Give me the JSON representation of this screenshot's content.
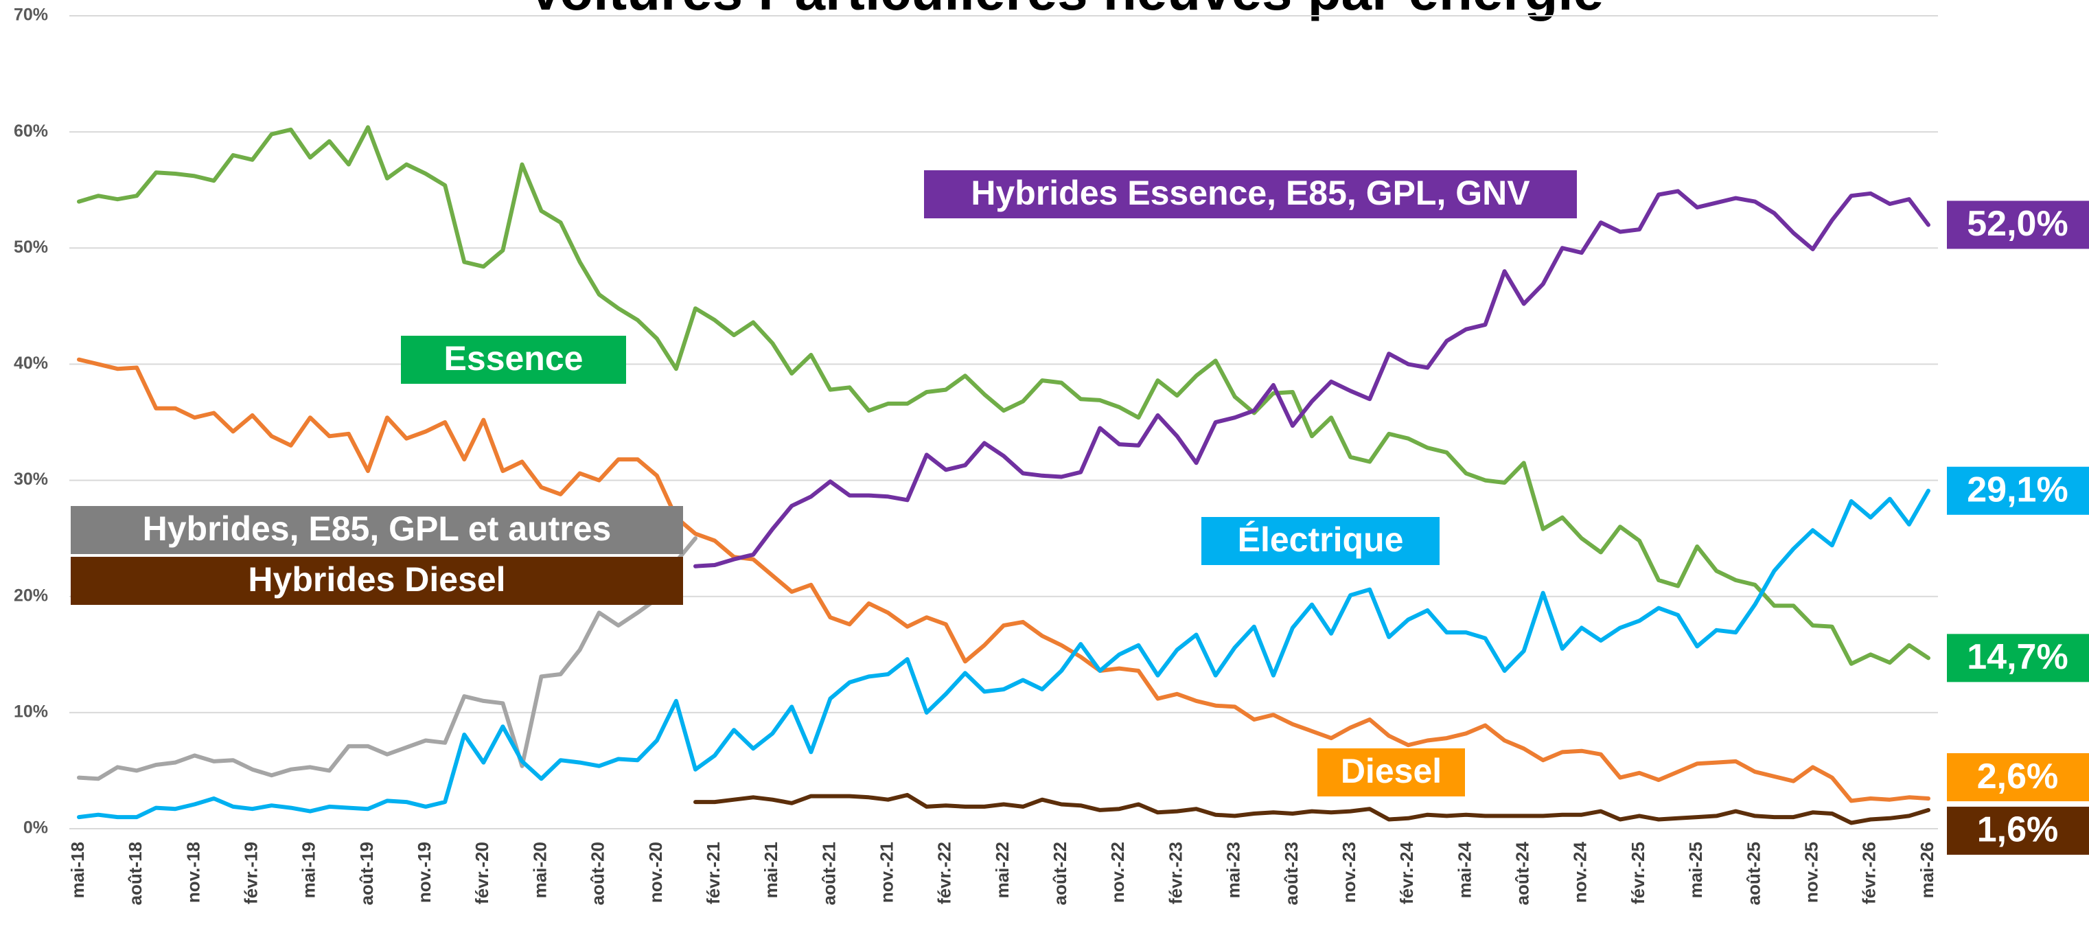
{
  "chart_data": {
    "type": "line",
    "title": "Voitures Particulières neuves par énergie",
    "categories": [
      "mai-18",
      null,
      null,
      "août-18",
      null,
      null,
      "nov.-18",
      null,
      null,
      "févr.-19",
      null,
      null,
      "mai-19",
      null,
      null,
      "août-19",
      null,
      null,
      "nov.-19",
      null,
      null,
      "févr.-20",
      null,
      null,
      "mai-20",
      null,
      null,
      "août-20",
      null,
      null,
      "nov.-20",
      null,
      null,
      "févr.-21",
      null,
      null,
      "mai-21",
      null,
      null,
      "août-21",
      null,
      null,
      "nov.-21",
      null,
      null,
      "févr.-22",
      null,
      null,
      "mai-22",
      null,
      null,
      "août-22",
      null,
      null,
      "nov.-22",
      null,
      null,
      "févr.-23",
      null,
      null,
      "mai-23",
      null,
      null,
      "août-23",
      null,
      null,
      "nov.-23",
      null,
      null,
      "févr.-24",
      null,
      null,
      "mai-24",
      null,
      null,
      "août-24",
      null,
      null,
      "nov.-24",
      null,
      null,
      "févr.-25",
      null,
      null,
      "mai-25",
      null,
      null,
      "août-25",
      null,
      null,
      "nov.-25",
      null,
      null,
      "févr.-26",
      null,
      null,
      "mai-26"
    ],
    "ylim": [
      0,
      70
    ],
    "yticks": [
      {
        "value": 0,
        "label": "0%"
      },
      {
        "value": 10,
        "label": "10%"
      },
      {
        "value": 20,
        "label": "20%"
      },
      {
        "value": 30,
        "label": "30%"
      },
      {
        "value": 40,
        "label": "40%"
      },
      {
        "value": 50,
        "label": "50%"
      },
      {
        "value": 60,
        "label": "60%"
      },
      {
        "value": 70,
        "label": "70%"
      }
    ],
    "grid": true,
    "series": [
      {
        "name": "Hybrides Essence, E85, GPL, GNV",
        "color": "#7030a0",
        "label_color": "#7030a0",
        "values": [
          null,
          null,
          null,
          null,
          null,
          null,
          null,
          null,
          null,
          null,
          null,
          null,
          null,
          null,
          null,
          null,
          null,
          null,
          null,
          null,
          null,
          null,
          null,
          null,
          null,
          null,
          null,
          null,
          null,
          null,
          null,
          null,
          22.6,
          22.7,
          23.2,
          23.6,
          25.8,
          27.8,
          28.6,
          29.9,
          28.7,
          28.7,
          28.6,
          28.3,
          32.2,
          30.9,
          31.3,
          33.2,
          32.1,
          30.6,
          30.4,
          30.3,
          30.7,
          34.5,
          33.1,
          33,
          35.6,
          33.8,
          31.5,
          35,
          35.4,
          36,
          38.2,
          34.7,
          36.8,
          38.5,
          37.7,
          37,
          40.9,
          40,
          39.7,
          42,
          43,
          43.4,
          48,
          45.2,
          46.9,
          50,
          49.6,
          52.2,
          51.4,
          51.6,
          54.6,
          54.9,
          53.5,
          53.9,
          54.3,
          54,
          53,
          51.3,
          49.9,
          52.4,
          54.5,
          54.7,
          53.8,
          54.2,
          52
        ],
        "value_labels": [
          null,
          null,
          null,
          null,
          null,
          null,
          null,
          null,
          null,
          null,
          null,
          null,
          null,
          null,
          null,
          null,
          null,
          null,
          null,
          null,
          null,
          null,
          null,
          null,
          null,
          null,
          null,
          null,
          null,
          null,
          null,
          null,
          null,
          null,
          null,
          null,
          null,
          null,
          null,
          null,
          null,
          null,
          null,
          null,
          null,
          null,
          null,
          null,
          null,
          null,
          null,
          null,
          null,
          null,
          null,
          null,
          null,
          null,
          null,
          null,
          null,
          null,
          null,
          null,
          null,
          null,
          null,
          null,
          null,
          null,
          null,
          null,
          null,
          null,
          null,
          null,
          null,
          null,
          null,
          null,
          null,
          null,
          null,
          null,
          null,
          null,
          null,
          null,
          null,
          null,
          null,
          null,
          null,
          null,
          null,
          null,
          "52,0%"
        ]
      },
      {
        "name": "Essence",
        "color": "#70ad47",
        "label_color": "#00b050",
        "values": [
          54,
          54.5,
          54.2,
          54.5,
          56.5,
          56.4,
          56.2,
          55.8,
          58,
          57.6,
          59.8,
          60.2,
          57.8,
          59.2,
          57.2,
          60.4,
          56,
          57.2,
          56.4,
          55.4,
          48.8,
          48.4,
          49.8,
          57.2,
          53.2,
          52.2,
          48.8,
          46,
          44.8,
          43.8,
          42.2,
          39.6,
          44.8,
          43.8,
          42.5,
          43.6,
          41.8,
          39.2,
          40.8,
          37.8,
          38,
          36,
          36.6,
          36.6,
          37.6,
          37.8,
          39,
          37.4,
          36,
          36.8,
          38.6,
          38.4,
          37,
          36.9,
          36.3,
          35.4,
          38.6,
          37.3,
          39,
          40.3,
          37.2,
          35.8,
          37.5,
          37.6,
          33.8,
          35.4,
          32,
          31.6,
          34,
          33.6,
          32.8,
          32.4,
          30.6,
          30,
          29.8,
          31.5,
          25.8,
          26.8,
          25,
          23.8,
          26,
          24.8,
          21.4,
          20.9,
          24.3,
          22.2,
          21.4,
          21,
          19.2,
          19.2,
          17.5,
          17.4,
          14.2,
          15,
          14.3,
          15.8,
          14.7
        ],
        "value_labels": [
          null,
          null,
          null,
          null,
          null,
          null,
          null,
          null,
          null,
          null,
          null,
          null,
          null,
          null,
          null,
          null,
          null,
          null,
          null,
          null,
          null,
          null,
          null,
          null,
          null,
          null,
          null,
          null,
          null,
          null,
          null,
          null,
          null,
          null,
          null,
          null,
          null,
          null,
          null,
          null,
          null,
          null,
          null,
          null,
          null,
          null,
          null,
          null,
          null,
          null,
          null,
          null,
          null,
          null,
          null,
          null,
          null,
          null,
          null,
          null,
          null,
          null,
          null,
          null,
          null,
          null,
          null,
          null,
          null,
          null,
          null,
          null,
          null,
          null,
          null,
          null,
          null,
          null,
          null,
          null,
          null,
          null,
          null,
          null,
          null,
          null,
          null,
          null,
          null,
          null,
          null,
          null,
          null,
          null,
          null,
          null,
          "14,7%"
        ]
      },
      {
        "name": "Hybrides, E85, GPL et autres",
        "color": "#a5a5a5",
        "label_color": "#808080",
        "values": [
          4.4,
          4.3,
          5.3,
          5,
          5.5,
          5.7,
          6.3,
          5.8,
          5.9,
          5.1,
          4.6,
          5.1,
          5.3,
          5,
          7.1,
          7.1,
          6.4,
          7,
          7.6,
          7.4,
          11.4,
          11,
          10.8,
          5.4,
          13.1,
          13.3,
          15.4,
          18.6,
          17.5,
          18.6,
          19.8,
          23,
          25,
          null,
          null,
          null,
          null,
          null,
          null,
          null,
          null,
          null,
          null,
          null,
          null,
          null,
          null,
          null,
          null,
          null,
          null,
          null,
          null,
          null,
          null,
          null,
          null,
          null,
          null,
          null,
          null,
          null,
          null,
          null,
          null,
          null,
          null,
          null,
          null,
          null,
          null,
          null,
          null,
          null,
          null,
          null,
          null,
          null,
          null,
          null,
          null,
          null,
          null,
          null,
          null,
          null,
          null,
          null,
          null,
          null,
          null,
          null,
          null,
          null,
          null,
          null,
          null
        ]
      },
      {
        "name": "Hybrides Diesel",
        "color": "#5c2e0a",
        "label_color": "#632b00",
        "values": [
          null,
          null,
          null,
          null,
          null,
          null,
          null,
          null,
          null,
          null,
          null,
          null,
          null,
          null,
          null,
          null,
          null,
          null,
          null,
          null,
          null,
          null,
          null,
          null,
          null,
          null,
          null,
          null,
          null,
          null,
          null,
          null,
          2.3,
          2.3,
          2.5,
          2.7,
          2.5,
          2.2,
          2.8,
          2.8,
          2.8,
          2.7,
          2.5,
          2.9,
          1.9,
          2,
          1.9,
          1.9,
          2.1,
          1.9,
          2.5,
          2.1,
          2,
          1.6,
          1.7,
          2.1,
          1.4,
          1.5,
          1.7,
          1.2,
          1.1,
          1.3,
          1.4,
          1.3,
          1.5,
          1.4,
          1.5,
          1.7,
          0.8,
          0.9,
          1.2,
          1.1,
          1.2,
          1.1,
          1.1,
          1.1,
          1.1,
          1.2,
          1.2,
          1.5,
          0.8,
          1.1,
          0.8,
          0.9,
          1,
          1.1,
          1.5,
          1.1,
          1,
          1,
          1.4,
          1.3,
          0.5,
          0.8,
          0.9,
          1.1,
          1.6
        ],
        "value_labels": [
          null,
          null,
          null,
          null,
          null,
          null,
          null,
          null,
          null,
          null,
          null,
          null,
          null,
          null,
          null,
          null,
          null,
          null,
          null,
          null,
          null,
          null,
          null,
          null,
          null,
          null,
          null,
          null,
          null,
          null,
          null,
          null,
          null,
          null,
          null,
          null,
          null,
          null,
          null,
          null,
          null,
          null,
          null,
          null,
          null,
          null,
          null,
          null,
          null,
          null,
          null,
          null,
          null,
          null,
          null,
          null,
          null,
          null,
          null,
          null,
          null,
          null,
          null,
          null,
          null,
          null,
          null,
          null,
          null,
          null,
          null,
          null,
          null,
          null,
          null,
          null,
          null,
          null,
          null,
          null,
          null,
          null,
          null,
          null,
          null,
          null,
          null,
          null,
          null,
          null,
          null,
          null,
          null,
          null,
          null,
          null,
          "1,6%"
        ]
      },
      {
        "name": "Électrique",
        "color": "#00b0f0",
        "label_color": "#00b0f0",
        "values": [
          1,
          1.2,
          1,
          1,
          1.8,
          1.7,
          2.1,
          2.6,
          1.9,
          1.7,
          2,
          1.8,
          1.5,
          1.9,
          1.8,
          1.7,
          2.4,
          2.3,
          1.9,
          2.3,
          8.1,
          5.7,
          8.8,
          5.8,
          4.3,
          5.9,
          5.7,
          5.4,
          6,
          5.9,
          7.6,
          11,
          5.1,
          6.3,
          8.5,
          6.9,
          8.2,
          10.5,
          6.6,
          11.2,
          12.6,
          13.1,
          13.3,
          14.6,
          10,
          11.6,
          13.4,
          11.8,
          12,
          12.8,
          12,
          13.6,
          15.9,
          13.6,
          15,
          15.8,
          13.2,
          15.4,
          16.7,
          13.2,
          15.6,
          17.4,
          13.2,
          17.3,
          19.3,
          16.8,
          20.1,
          20.6,
          16.5,
          18,
          18.8,
          16.9,
          16.9,
          16.4,
          13.6,
          15.3,
          20.3,
          15.5,
          17.3,
          16.2,
          17.3,
          17.9,
          19,
          18.4,
          15.7,
          17.1,
          16.9,
          19.3,
          22.2,
          24.1,
          25.7,
          24.4,
          28.2,
          26.8,
          28.4,
          26.2,
          29.1
        ],
        "value_labels": [
          null,
          null,
          null,
          null,
          null,
          null,
          null,
          null,
          null,
          null,
          null,
          null,
          null,
          null,
          null,
          null,
          null,
          null,
          null,
          null,
          null,
          null,
          null,
          null,
          null,
          null,
          null,
          null,
          null,
          null,
          null,
          null,
          null,
          null,
          null,
          null,
          null,
          null,
          null,
          null,
          null,
          null,
          null,
          null,
          null,
          null,
          null,
          null,
          null,
          null,
          null,
          null,
          null,
          null,
          null,
          null,
          null,
          null,
          null,
          null,
          null,
          null,
          null,
          null,
          null,
          null,
          null,
          null,
          null,
          null,
          null,
          null,
          null,
          null,
          null,
          null,
          null,
          null,
          null,
          null,
          null,
          null,
          null,
          null,
          null,
          null,
          null,
          null,
          null,
          null,
          null,
          null,
          null,
          null,
          null,
          null,
          "29,1%"
        ]
      },
      {
        "name": "Diesel",
        "color": "#ed7d31",
        "label_color": "#ff9900",
        "values": [
          40.4,
          40,
          39.6,
          39.7,
          36.2,
          36.2,
          35.4,
          35.8,
          34.2,
          35.6,
          33.8,
          33,
          35.4,
          33.8,
          34,
          30.8,
          35.4,
          33.6,
          34.2,
          35,
          31.8,
          35.2,
          30.8,
          31.6,
          29.4,
          28.8,
          30.6,
          30,
          31.8,
          31.8,
          30.4,
          26.8,
          25.4,
          24.8,
          23.4,
          23.2,
          21.8,
          20.4,
          21,
          18.2,
          17.6,
          19.4,
          18.6,
          17.4,
          18.2,
          17.6,
          14.4,
          15.8,
          17.5,
          17.8,
          16.6,
          15.8,
          14.8,
          13.6,
          13.8,
          13.6,
          11.2,
          11.6,
          11,
          10.6,
          10.5,
          9.4,
          9.8,
          9,
          8.4,
          7.8,
          8.7,
          9.4,
          8,
          7.2,
          7.6,
          7.8,
          8.2,
          8.9,
          7.6,
          6.9,
          5.9,
          6.6,
          6.7,
          6.4,
          4.4,
          4.8,
          4.2,
          4.9,
          5.6,
          5.7,
          5.8,
          4.9,
          4.5,
          4.1,
          5.3,
          4.4,
          2.4,
          2.6,
          2.5,
          2.7,
          2.6
        ],
        "value_labels": [
          null,
          null,
          null,
          null,
          null,
          null,
          null,
          null,
          null,
          null,
          null,
          null,
          null,
          null,
          null,
          null,
          null,
          null,
          null,
          null,
          null,
          null,
          null,
          null,
          null,
          null,
          null,
          null,
          null,
          null,
          null,
          null,
          null,
          null,
          null,
          null,
          null,
          null,
          null,
          null,
          null,
          null,
          null,
          null,
          null,
          null,
          null,
          null,
          null,
          null,
          null,
          null,
          null,
          null,
          null,
          null,
          null,
          null,
          null,
          null,
          null,
          null,
          null,
          null,
          null,
          null,
          null,
          null,
          null,
          null,
          null,
          null,
          null,
          null,
          null,
          null,
          null,
          null,
          null,
          null,
          null,
          null,
          null,
          null,
          null,
          null,
          null,
          null,
          null,
          null,
          null,
          null,
          null,
          null,
          null,
          null,
          "2,6%"
        ]
      }
    ]
  }
}
